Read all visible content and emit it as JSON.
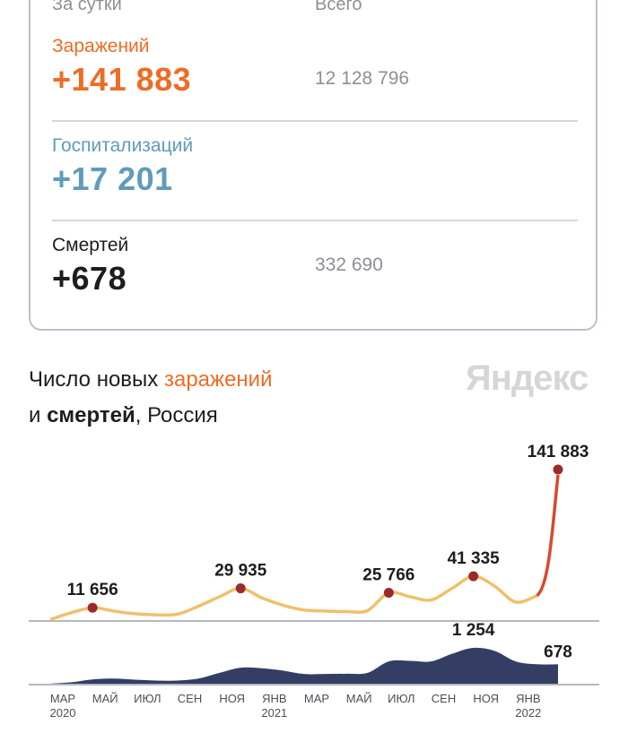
{
  "summary": {
    "col_daily": "За сутки",
    "col_total": "Всего",
    "infections": {
      "label": "Заражений",
      "daily": "+141 883",
      "total": "12 128 796"
    },
    "hospitalizations": {
      "label": "Госпитализаций",
      "daily": "+17 201"
    },
    "deaths": {
      "label": "Смертей",
      "daily": "+678",
      "total": "332 690"
    }
  },
  "chart": {
    "title_pre": "Число новых ",
    "title_infections": "заражений",
    "title_and": "и ",
    "title_deaths": "смертей",
    "title_post": ", Россия",
    "logo": "Яндекс"
  },
  "colors": {
    "infections": "#ee6c24",
    "hospitalizations": "#5f9cba",
    "line": "#f0c06a",
    "spike": "#d84a2a",
    "marker": "#9c2a2a",
    "deaths_area": "#343e64"
  },
  "chart_data": {
    "type": "area",
    "title": "Число новых заражений и смертей, Россия",
    "x": [
      "2020-03",
      "2020-04",
      "2020-05",
      "2020-06",
      "2020-07",
      "2020-08",
      "2020-09",
      "2020-10",
      "2020-11",
      "2020-12",
      "2021-01",
      "2021-02",
      "2021-03",
      "2021-04",
      "2021-05",
      "2021-06",
      "2021-07",
      "2021-08",
      "2021-09",
      "2021-10",
      "2021-11",
      "2021-12",
      "2022-01",
      "2022-01b",
      "2022-01c"
    ],
    "x_ticks": [
      {
        "label": "МАР",
        "year": "2020",
        "index": 0
      },
      {
        "label": "МАЙ",
        "year": "",
        "index": 2
      },
      {
        "label": "ИЮЛ",
        "year": "",
        "index": 4
      },
      {
        "label": "СЕН",
        "year": "",
        "index": 6
      },
      {
        "label": "НОЯ",
        "year": "",
        "index": 8
      },
      {
        "label": "ЯНВ",
        "year": "2021",
        "index": 10
      },
      {
        "label": "МАР",
        "year": "",
        "index": 12
      },
      {
        "label": "МАЙ",
        "year": "",
        "index": 14
      },
      {
        "label": "ИЮЛ",
        "year": "",
        "index": 16
      },
      {
        "label": "СЕН",
        "year": "",
        "index": 18
      },
      {
        "label": "НОЯ",
        "year": "",
        "index": 20
      },
      {
        "label": "ЯНВ",
        "year": "2022",
        "index": 22
      }
    ],
    "series": [
      {
        "name": "Заражения",
        "values": [
          500,
          7000,
          11656,
          8500,
          6000,
          5000,
          5500,
          13000,
          22000,
          29935,
          21000,
          14000,
          9500,
          8500,
          8000,
          9000,
          25766,
          22000,
          19000,
          30000,
          41335,
          32000,
          17000,
          23000,
          141883
        ]
      },
      {
        "name": "Смерти",
        "values": [
          2,
          50,
          150,
          180,
          140,
          110,
          110,
          180,
          380,
          560,
          540,
          460,
          340,
          340,
          350,
          380,
          780,
          800,
          780,
          1050,
          1254,
          1150,
          780,
          680,
          678
        ]
      }
    ],
    "annotations": [
      {
        "series": "Заражения",
        "index": 2,
        "text": "11 656"
      },
      {
        "series": "Заражения",
        "index": 9,
        "text": "29 935"
      },
      {
        "series": "Заражения",
        "index": 16,
        "text": "25 766"
      },
      {
        "series": "Заражения",
        "index": 20,
        "text": "41 335"
      },
      {
        "series": "Заражения",
        "index": 24,
        "text": "141 883"
      },
      {
        "series": "Смерти",
        "index": 20,
        "text": "1 254"
      },
      {
        "series": "Смерти",
        "index": 24,
        "text": "678"
      }
    ]
  }
}
